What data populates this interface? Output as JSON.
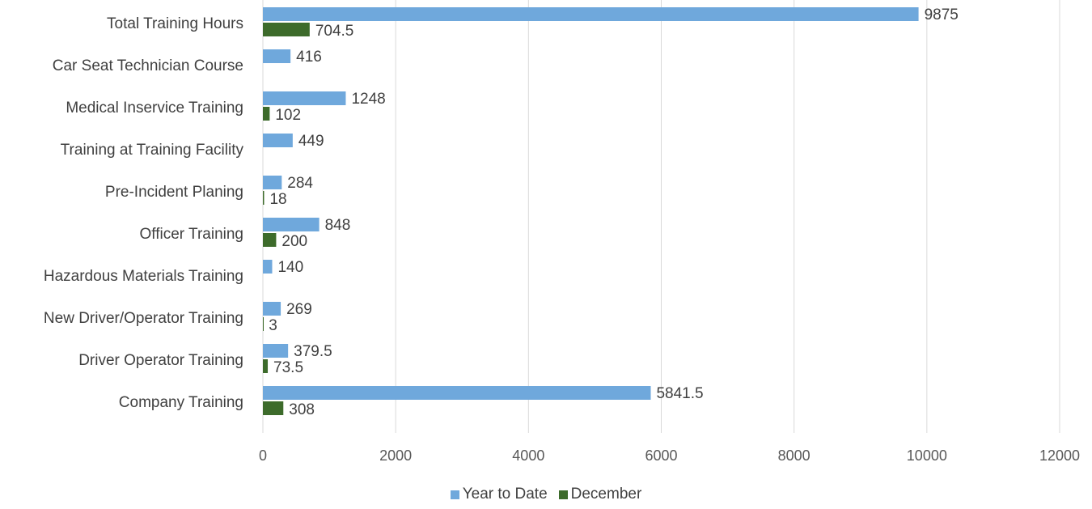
{
  "chart_data": {
    "type": "bar",
    "orientation": "horizontal",
    "categories": [
      "Total Training Hours",
      "Car Seat Technician Course",
      "Medical Inservice Training",
      "Training at Training Facility",
      "Pre-Incident Planing",
      "Officer Training",
      "Hazardous Materials Training",
      "New Driver/Operator Training",
      "Driver Operator Training",
      "Company Training"
    ],
    "series": [
      {
        "name": "Year to Date",
        "color": "#6fa8dc",
        "values": [
          9875,
          416,
          1248,
          449,
          284,
          848,
          140,
          269,
          379.5,
          5841.5
        ],
        "labels": [
          "9875",
          "416",
          "1248",
          "449",
          "284",
          "848",
          "140",
          "269",
          "379.5",
          "5841.5"
        ]
      },
      {
        "name": "December",
        "color": "#3d6b2b",
        "values": [
          704.5,
          null,
          102,
          null,
          18,
          200,
          null,
          3,
          73.5,
          308
        ],
        "labels": [
          "704.5",
          "",
          "102",
          "",
          "18",
          "200",
          "",
          "3",
          "73.5",
          "308"
        ]
      }
    ],
    "xlim": [
      0,
      12000
    ],
    "xticks": [
      "0",
      "2000",
      "4000",
      "6000",
      "8000",
      "10000",
      "12000"
    ],
    "xtick_values": [
      0,
      2000,
      4000,
      6000,
      8000,
      10000,
      12000
    ],
    "grid": true,
    "legend_position": "bottom"
  }
}
